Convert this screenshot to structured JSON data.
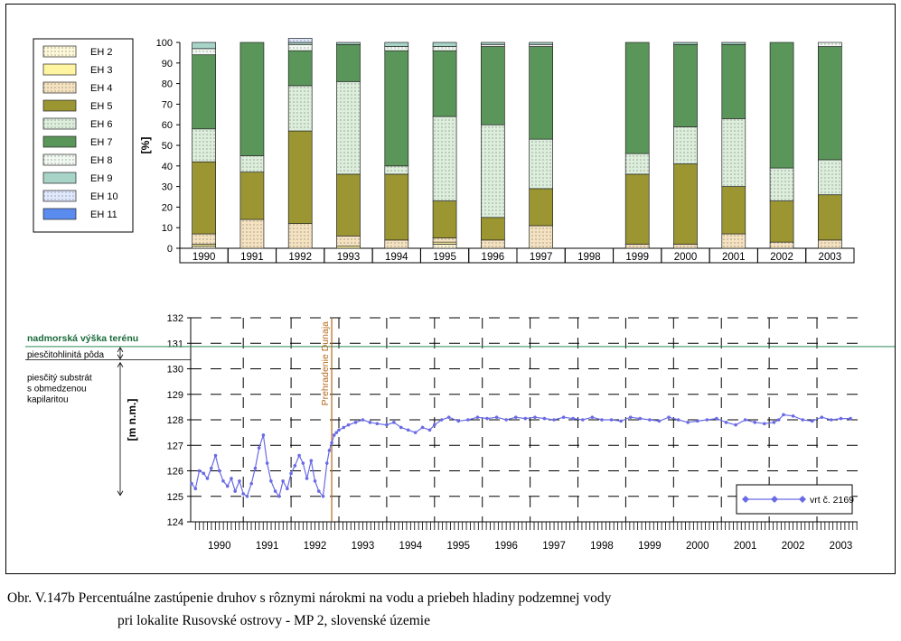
{
  "caption": {
    "line1": "Obr. V.147b Percentuálne zastúpenie druhov s rôznymi nárokmi na vodu a priebeh hladiny podzemnej vody",
    "line2": "pri lokalite Rusovské ostrovy - MP 2, slovenské územie"
  },
  "chart_data": [
    {
      "type": "bar",
      "stacked": true,
      "ylabel": "[%]",
      "ylim": [
        0,
        100
      ],
      "yticks": [
        0,
        10,
        20,
        30,
        40,
        50,
        60,
        70,
        80,
        90,
        100
      ],
      "categories": [
        "1990",
        "1991",
        "1992",
        "1993",
        "1994",
        "1995",
        "1996",
        "1997",
        "1998",
        "1999",
        "2000",
        "2001",
        "2002",
        "2003"
      ],
      "legend_position": "left",
      "series": [
        {
          "name": "EH 2",
          "color": "#fff8d8",
          "pattern": "dots",
          "values": [
            1,
            0,
            0,
            0,
            0,
            2,
            0,
            0,
            0,
            0,
            0,
            0,
            0,
            0
          ]
        },
        {
          "name": "EH 3",
          "color": "#fff5a0",
          "pattern": "none",
          "values": [
            1,
            0,
            0,
            1,
            0,
            1,
            0,
            0,
            0,
            0,
            0,
            0,
            0,
            0
          ]
        },
        {
          "name": "EH 4",
          "color": "#f6e2c0",
          "pattern": "dots",
          "values": [
            5,
            14,
            12,
            5,
            4,
            2,
            4,
            11,
            0,
            2,
            2,
            7,
            3,
            4
          ]
        },
        {
          "name": "EH 5",
          "color": "#9b9632",
          "pattern": "none",
          "values": [
            35,
            23,
            45,
            30,
            32,
            18,
            11,
            18,
            0,
            34,
            39,
            23,
            20,
            22
          ]
        },
        {
          "name": "EH 6",
          "color": "#ddeedd",
          "pattern": "dots",
          "values": [
            16,
            8,
            22,
            45,
            4,
            41,
            45,
            24,
            0,
            10,
            18,
            33,
            16,
            17
          ]
        },
        {
          "name": "EH 7",
          "color": "#5a965a",
          "pattern": "none",
          "values": [
            36,
            55,
            17,
            18,
            56,
            32,
            38,
            45,
            0,
            54,
            40,
            36,
            61,
            55
          ]
        },
        {
          "name": "EH 8",
          "color": "#f2f9f2",
          "pattern": "dots",
          "values": [
            3,
            0,
            3,
            0,
            2,
            2,
            1,
            1,
            0,
            0,
            0,
            0,
            0,
            2
          ]
        },
        {
          "name": "EH 9",
          "color": "#a8d4c8",
          "pattern": "none",
          "values": [
            3,
            0,
            1,
            1,
            2,
            2,
            1,
            1,
            0,
            0,
            1,
            1,
            0,
            0
          ]
        },
        {
          "name": "EH 10",
          "color": "#e0e8ff",
          "pattern": "dots",
          "values": [
            0,
            0,
            2,
            0,
            0,
            0,
            0,
            0,
            0,
            0,
            0,
            0,
            0,
            0
          ]
        },
        {
          "name": "EH 11",
          "color": "#5a8cf0",
          "pattern": "none",
          "values": [
            0,
            0,
            0,
            0,
            0,
            0,
            0,
            0,
            0,
            0,
            0,
            0,
            0,
            0
          ]
        }
      ]
    },
    {
      "type": "line",
      "ylabel": "[m n.m.]",
      "ylim": [
        124,
        132
      ],
      "yticks": [
        124,
        125,
        126,
        127,
        128,
        129,
        130,
        131,
        132
      ],
      "xticks": [
        "1990",
        "1991",
        "1992",
        "1993",
        "1994",
        "1995",
        "1996",
        "1997",
        "1998",
        "1999",
        "2000",
        "2001",
        "2002",
        "2003"
      ],
      "xlim": [
        1989.9,
        2003.85
      ],
      "grid": "dashed",
      "terrain_level": 130.87,
      "terrain_label": "nadmorská výška terénu",
      "dam_year": 1992.85,
      "dam_label": "Prehradenie Dunaja",
      "legend_position": "bottom-right",
      "series": [
        {
          "name": "vrt č. 2169",
          "color": "#6a6ae6",
          "x": [
            1989.92,
            1990.0,
            1990.08,
            1990.17,
            1990.25,
            1990.33,
            1990.42,
            1990.5,
            1990.58,
            1990.67,
            1990.75,
            1990.83,
            1990.92,
            1991.0,
            1991.08,
            1991.17,
            1991.25,
            1991.33,
            1991.42,
            1991.5,
            1991.58,
            1991.67,
            1991.75,
            1991.83,
            1991.92,
            1992.0,
            1992.08,
            1992.17,
            1992.25,
            1992.33,
            1992.42,
            1992.5,
            1992.58,
            1992.67,
            1992.75,
            1992.8,
            1992.85,
            1992.9,
            1992.95,
            1993.0,
            1993.1,
            1993.2,
            1993.35,
            1993.5,
            1993.65,
            1993.8,
            1994.0,
            1994.15,
            1994.3,
            1994.45,
            1994.6,
            1994.75,
            1994.9,
            1995.0,
            1995.15,
            1995.3,
            1995.5,
            1995.7,
            1995.9,
            1996.1,
            1996.3,
            1996.5,
            1996.7,
            1996.9,
            1997.1,
            1997.3,
            1997.5,
            1997.7,
            1997.9,
            1998.1,
            1998.3,
            1998.5,
            1998.7,
            1998.9,
            1999.1,
            1999.3,
            1999.5,
            1999.7,
            1999.9,
            2000.1,
            2000.3,
            2000.5,
            2000.7,
            2000.9,
            2001.1,
            2001.3,
            2001.5,
            2001.7,
            2001.9,
            2002.1,
            2002.2,
            2002.3,
            2002.5,
            2002.7,
            2002.9,
            2003.1,
            2003.3,
            2003.5,
            2003.7
          ],
          "y": [
            125.5,
            125.3,
            126.0,
            125.9,
            125.7,
            126.1,
            126.6,
            126.0,
            125.6,
            125.4,
            125.7,
            125.2,
            125.6,
            125.1,
            125.0,
            125.5,
            126.1,
            126.9,
            127.4,
            126.3,
            125.6,
            125.2,
            125.0,
            125.6,
            125.3,
            125.9,
            126.2,
            126.6,
            126.3,
            125.7,
            126.4,
            125.6,
            125.2,
            125.0,
            126.3,
            126.8,
            127.1,
            127.4,
            127.5,
            127.6,
            127.7,
            127.8,
            127.9,
            128.0,
            127.9,
            127.85,
            127.8,
            127.9,
            127.7,
            127.6,
            127.5,
            127.7,
            127.6,
            127.8,
            128.0,
            128.1,
            127.95,
            128.0,
            128.1,
            128.05,
            128.1,
            128.0,
            128.1,
            128.05,
            128.1,
            128.05,
            128.0,
            128.1,
            128.05,
            128.0,
            128.1,
            128.0,
            128.0,
            127.95,
            128.1,
            128.05,
            128.0,
            127.95,
            128.1,
            128.0,
            127.9,
            127.95,
            128.0,
            128.05,
            127.9,
            127.8,
            128.0,
            127.9,
            127.85,
            127.9,
            128.0,
            128.2,
            128.15,
            128.0,
            127.95,
            128.1,
            128.0,
            128.05,
            128.05
          ]
        }
      ],
      "annotations": [
        {
          "text": "piesčitohlinitá pôda",
          "range": [
            130.87,
            130.35
          ]
        },
        {
          "text": "piesčitý substrát s obmedzenou kapilaritou",
          "range": [
            130.35,
            125.0
          ]
        }
      ]
    }
  ]
}
